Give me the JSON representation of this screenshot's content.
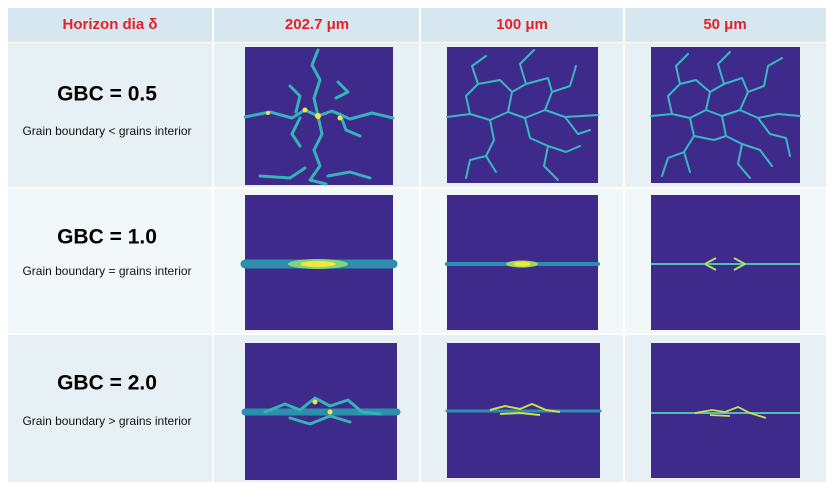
{
  "header": [
    "Horizon dia δ",
    "202.7 μm",
    "100 μm",
    "50 μm"
  ],
  "rows": [
    {
      "title": "GBC = 0.5",
      "subtitle": "Grain boundary < grains interior"
    },
    {
      "title": "GBC = 1.0",
      "subtitle": "Grain boundary = grains interior"
    },
    {
      "title": "GBC = 2.0",
      "subtitle": "Grain boundary > grains interior"
    }
  ]
}
